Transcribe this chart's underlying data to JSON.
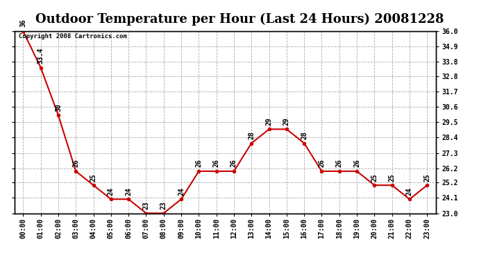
{
  "title": "Outdoor Temperature per Hour (Last 24 Hours) 20081228",
  "copyright_text": "Copyright 2008 Cartronics.com",
  "hours": [
    "00:00",
    "01:00",
    "02:00",
    "03:00",
    "04:00",
    "05:00",
    "06:00",
    "07:00",
    "08:00",
    "09:00",
    "10:00",
    "11:00",
    "12:00",
    "13:00",
    "14:00",
    "15:00",
    "16:00",
    "17:00",
    "18:00",
    "19:00",
    "20:00",
    "21:00",
    "22:00",
    "23:00"
  ],
  "temps": [
    36.0,
    33.4,
    30.0,
    26.0,
    25.0,
    24.0,
    24.0,
    23.0,
    23.0,
    24.0,
    26.0,
    26.0,
    26.0,
    28.0,
    29.0,
    29.0,
    28.0,
    26.0,
    26.0,
    26.0,
    25.0,
    25.0,
    24.0,
    25.0
  ],
  "line_color": "#cc0000",
  "marker_color": "#cc0000",
  "bg_color": "#ffffff",
  "plot_bg_color": "#ffffff",
  "grid_color": "#aaaaaa",
  "ylim": [
    23.0,
    36.0
  ],
  "yticks_right": [
    36.0,
    34.9,
    33.8,
    32.8,
    31.7,
    30.6,
    29.5,
    28.4,
    27.3,
    26.2,
    25.2,
    24.1,
    23.0
  ],
  "title_fontsize": 13,
  "label_fontsize": 7,
  "annotation_fontsize": 7,
  "copyright_fontsize": 6.5
}
